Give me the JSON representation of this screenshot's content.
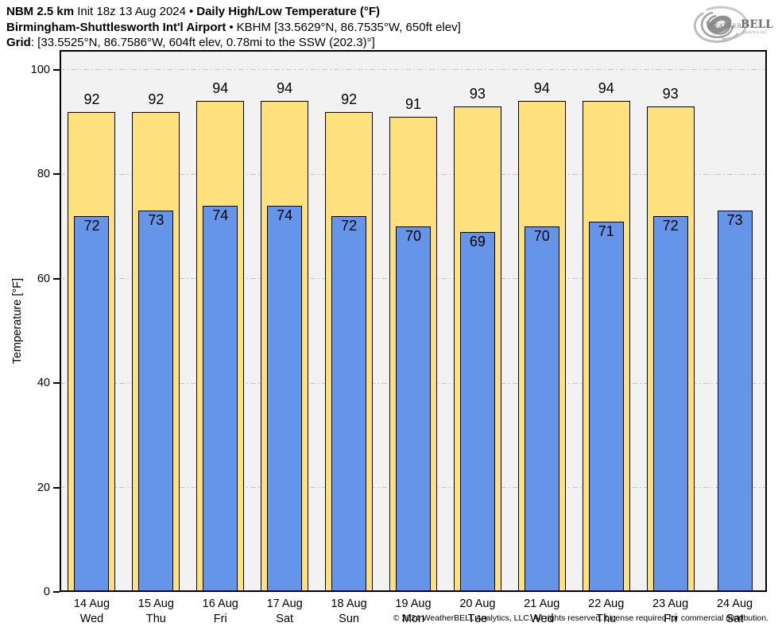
{
  "header": {
    "line1": {
      "model": "NBM 2.5 km",
      "init": "Init 18z 13 Aug 2024",
      "sep": "•",
      "title": "Daily High/Low Temperature (°F)"
    },
    "line2": {
      "station": "Birmingham-Shuttlesworth Int'l Airport",
      "sep": "•",
      "details": "KBHM [33.5629°N, 86.7535°W, 650ft elev]"
    },
    "line3": {
      "label": "Grid",
      "details": ": [33.5525°N, 86.7586°W, 604ft elev, 0.78mi to the SSW (202.3)°]"
    }
  },
  "logo": {
    "weather": "Weather",
    "bell": "BELL",
    "sub": "Analytics LLC"
  },
  "chart_data": {
    "type": "bar",
    "title": "NBM 2.5 km Init 18z 13 Aug 2024 • Daily High/Low Temperature (°F)",
    "ylabel": "Temperature [°F]",
    "ylim": [
      0,
      103.8
    ],
    "yticks": [
      0,
      20,
      40,
      60,
      80,
      100
    ],
    "grid": "horizontal dash-dot",
    "legend": "none",
    "plot_bg": "#F2F2F2",
    "grid_color": "#C6C6C6",
    "categories": [
      {
        "date": "14 Aug",
        "day": "Wed"
      },
      {
        "date": "15 Aug",
        "day": "Thu"
      },
      {
        "date": "16 Aug",
        "day": "Fri"
      },
      {
        "date": "17 Aug",
        "day": "Sat"
      },
      {
        "date": "18 Aug",
        "day": "Sun"
      },
      {
        "date": "19 Aug",
        "day": "Mon"
      },
      {
        "date": "20 Aug",
        "day": "Tue"
      },
      {
        "date": "21 Aug",
        "day": "Wed"
      },
      {
        "date": "22 Aug",
        "day": "Thu"
      },
      {
        "date": "23 Aug",
        "day": "Fri"
      },
      {
        "date": "24 Aug",
        "day": "Sat"
      }
    ],
    "series": [
      {
        "name": "Daily High",
        "color": "#FFE17D",
        "values": [
          92,
          92,
          94,
          94,
          92,
          91,
          93,
          94,
          94,
          93,
          null
        ]
      },
      {
        "name": "Daily Low",
        "color": "#6595E9",
        "values": [
          72,
          73,
          74,
          74,
          72,
          70,
          69,
          70,
          71,
          72,
          73
        ]
      }
    ]
  },
  "footer": {
    "copyright": "© 2024 WeatherBELL Analytics, LLC. All rights reserved. License required for commercial distribution."
  }
}
